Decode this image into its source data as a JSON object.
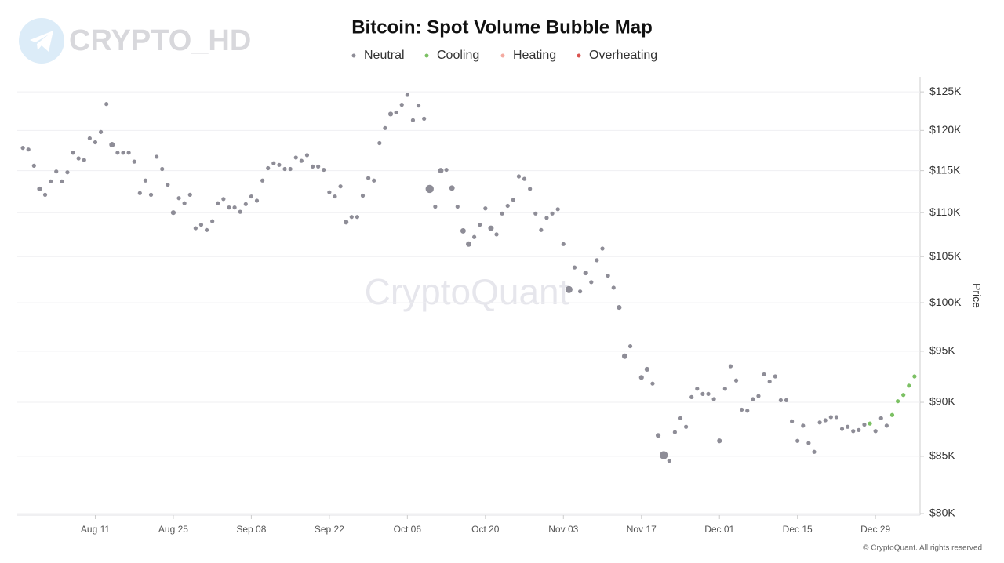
{
  "chart_data": {
    "type": "scatter",
    "title": "Bitcoin: Spot Volume Bubble Map",
    "y_label": "Price",
    "watermark": "CryptoQuant",
    "logo_text": "CRYPTO_HD",
    "copyright": "© CryptoQuant. All rights reserved",
    "yscale": "log",
    "grid": true,
    "legend": "top",
    "xlim": [
      "Jul 28",
      "Jan 06"
    ],
    "xticks": [
      "Aug 11",
      "Aug 25",
      "Sep 08",
      "Sep 22",
      "Oct 06",
      "Oct 20",
      "Nov 03",
      "Nov 17",
      "Dec 01",
      "Dec 15",
      "Dec 29"
    ],
    "ylim": [
      80000,
      127000
    ],
    "yticks": [
      {
        "value": 80000,
        "label": "$80K"
      },
      {
        "value": 85000,
        "label": "$85K"
      },
      {
        "value": 90000,
        "label": "$90K"
      },
      {
        "value": 95000,
        "label": "$95K"
      },
      {
        "value": 100000,
        "label": "$100K"
      },
      {
        "value": 105000,
        "label": "$105K"
      },
      {
        "value": 110000,
        "label": "$110K"
      },
      {
        "value": 115000,
        "label": "$115K"
      },
      {
        "value": 120000,
        "label": "$120K"
      },
      {
        "value": 125000,
        "label": "$125K"
      }
    ],
    "series": [
      {
        "name": "Neutral",
        "color": "#8e8d97",
        "x": [
          "Jul 29",
          "Jul 30",
          "Jul 31",
          "Aug 01",
          "Aug 02",
          "Aug 03",
          "Aug 04",
          "Aug 05",
          "Aug 06",
          "Aug 07",
          "Aug 08",
          "Aug 09",
          "Aug 10",
          "Aug 11",
          "Aug 12",
          "Aug 13",
          "Aug 14",
          "Aug 15",
          "Aug 16",
          "Aug 17",
          "Aug 18",
          "Aug 19",
          "Aug 20",
          "Aug 21",
          "Aug 22",
          "Aug 23",
          "Aug 24",
          "Aug 25",
          "Aug 26",
          "Aug 27",
          "Aug 28",
          "Aug 29",
          "Aug 30",
          "Aug 31",
          "Sep 01",
          "Sep 02",
          "Sep 03",
          "Sep 04",
          "Sep 05",
          "Sep 06",
          "Sep 07",
          "Sep 08",
          "Sep 09",
          "Sep 10",
          "Sep 11",
          "Sep 12",
          "Sep 13",
          "Sep 14",
          "Sep 15",
          "Sep 16",
          "Sep 17",
          "Sep 18",
          "Sep 19",
          "Sep 20",
          "Sep 21",
          "Sep 22",
          "Sep 23",
          "Sep 24",
          "Sep 25",
          "Sep 26",
          "Sep 27",
          "Sep 28",
          "Sep 29",
          "Sep 30",
          "Oct 01",
          "Oct 02",
          "Oct 03",
          "Oct 04",
          "Oct 05",
          "Oct 06",
          "Oct 07",
          "Oct 08",
          "Oct 09",
          "Oct 10",
          "Oct 11",
          "Oct 12",
          "Oct 13",
          "Oct 14",
          "Oct 15",
          "Oct 16",
          "Oct 17",
          "Oct 18",
          "Oct 19",
          "Oct 20",
          "Oct 21",
          "Oct 22",
          "Oct 23",
          "Oct 24",
          "Oct 25",
          "Oct 26",
          "Oct 27",
          "Oct 28",
          "Oct 29",
          "Oct 30",
          "Oct 31",
          "Nov 01",
          "Nov 02",
          "Nov 03",
          "Nov 04",
          "Nov 05",
          "Nov 06",
          "Nov 07",
          "Nov 08",
          "Nov 09",
          "Nov 10",
          "Nov 11",
          "Nov 12",
          "Nov 13",
          "Nov 14",
          "Nov 15",
          "Nov 17",
          "Nov 18",
          "Nov 19",
          "Nov 20",
          "Nov 21",
          "Nov 22",
          "Nov 23",
          "Nov 24",
          "Nov 25",
          "Nov 26",
          "Nov 27",
          "Nov 28",
          "Nov 29",
          "Nov 30",
          "Dec 01",
          "Dec 02",
          "Dec 03",
          "Dec 04",
          "Dec 05",
          "Dec 06",
          "Dec 07",
          "Dec 08",
          "Dec 09",
          "Dec 10",
          "Dec 11",
          "Dec 12",
          "Dec 13",
          "Dec 14",
          "Dec 15",
          "Dec 16",
          "Dec 17",
          "Dec 18",
          "Dec 19",
          "Dec 20",
          "Dec 21",
          "Dec 22",
          "Dec 23",
          "Dec 24",
          "Dec 25",
          "Dec 26",
          "Dec 27",
          "Dec 29",
          "Dec 30",
          "Dec 31"
        ],
        "values": [
          117800,
          117600,
          115600,
          112800,
          112100,
          113700,
          114900,
          113700,
          114800,
          117200,
          116500,
          116300,
          119000,
          118500,
          119800,
          123400,
          118200,
          117200,
          117200,
          117200,
          116100,
          112300,
          113800,
          112100,
          116700,
          115200,
          113300,
          110000,
          111700,
          111100,
          112100,
          108200,
          108600,
          108000,
          109000,
          111100,
          111600,
          110600,
          110600,
          110100,
          111000,
          111900,
          111400,
          113800,
          115300,
          115900,
          115700,
          115200,
          115200,
          116600,
          116200,
          116900,
          115500,
          115500,
          115100,
          112400,
          111900,
          113100,
          108900,
          109500,
          109500,
          112000,
          114100,
          113800,
          118400,
          120300,
          122100,
          122300,
          123300,
          124600,
          121300,
          123200,
          121500,
          112800,
          110700,
          115000,
          115100,
          112900,
          110700,
          107900,
          106400,
          107200,
          108600,
          110500,
          108200,
          107500,
          109900,
          110800,
          111500,
          114300,
          114000,
          112800,
          109900,
          108000,
          109400,
          109900,
          110400,
          106400,
          101400,
          103800,
          101200,
          103200,
          102200,
          104600,
          105900,
          102900,
          101600,
          99500,
          94500,
          95500,
          92400,
          93200,
          91800,
          86900,
          85100,
          84600,
          87200,
          88500,
          87700,
          90500,
          91300,
          90800,
          90800,
          90300,
          86400,
          91300,
          93500,
          92100,
          89300,
          89200,
          90300,
          90600,
          92700,
          92000,
          92500,
          90200,
          90200,
          88200,
          86400,
          87800,
          86200,
          85400,
          88100,
          88300,
          88600,
          88600,
          87500,
          87700,
          87300,
          87400,
          87900,
          87300,
          88500,
          87800
        ],
        "sizes": [
          1,
          1,
          1,
          1.4,
          1,
          1,
          1,
          1,
          1,
          1,
          1,
          1,
          1,
          1,
          1,
          1,
          1.8,
          1,
          1,
          1,
          1,
          1,
          1,
          1,
          1,
          1,
          1,
          1.4,
          1,
          1,
          1,
          1,
          1,
          1,
          1,
          1,
          1,
          1,
          1,
          1,
          1,
          1,
          1,
          1,
          1,
          1,
          1,
          1,
          1,
          1,
          1,
          1,
          1,
          1,
          1,
          1,
          1,
          1,
          1.4,
          1,
          1,
          1,
          1,
          1,
          1,
          1,
          1.4,
          1,
          1,
          1,
          1,
          1,
          1,
          4,
          1,
          1.8,
          1,
          1.8,
          1,
          1.8,
          1.8,
          1,
          1,
          1,
          1.8,
          1,
          1,
          1,
          1,
          1,
          1,
          1,
          1,
          1,
          1,
          1,
          1,
          1,
          3,
          1,
          1,
          1.4,
          1,
          1,
          1,
          1,
          1,
          1.4,
          1.8,
          1,
          1.4,
          1.4,
          1,
          1.4,
          4,
          1,
          1,
          1,
          1,
          1,
          1,
          1,
          1,
          1,
          1.4,
          1,
          1,
          1,
          1,
          1,
          1,
          1,
          1,
          1,
          1,
          1,
          1,
          1,
          1,
          1,
          1,
          1,
          1,
          1,
          1,
          1,
          1,
          1,
          1,
          1,
          1,
          1,
          1,
          1
        ]
      },
      {
        "name": "Cooling",
        "color": "#7bc063",
        "x": [
          "Dec 28",
          "Jan 01",
          "Jan 02",
          "Jan 03",
          "Jan 04",
          "Jan 05"
        ],
        "values": [
          88000,
          88800,
          90100,
          90700,
          91600,
          92500
        ],
        "sizes": [
          1,
          1,
          1,
          1,
          1,
          1
        ]
      },
      {
        "name": "Heating",
        "color": "#f4aaa0",
        "x": [],
        "values": [],
        "sizes": []
      },
      {
        "name": "Overheating",
        "color": "#d9534f",
        "x": [],
        "values": [],
        "sizes": []
      }
    ]
  }
}
